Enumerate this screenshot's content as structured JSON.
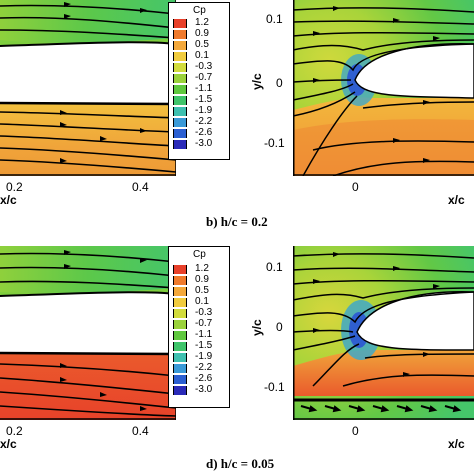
{
  "captions": {
    "b": "b) h/c = 0.2",
    "d": "d) h/c = 0.05"
  },
  "axes": {
    "xlabel": "x/c",
    "ylabel": "y/c",
    "left_x_ticks": [
      "0.2",
      "0.4"
    ],
    "right_x_ticks": [
      "0"
    ],
    "right_y_ticks": [
      "0.1",
      "0",
      "-0.1"
    ]
  },
  "legend": {
    "title": "Cp",
    "levels": [
      "1.2",
      "0.9",
      "0.5",
      "0.1",
      "-0.3",
      "-0.7",
      "-1.1",
      "-1.5",
      "-1.9",
      "-2.2",
      "-2.6",
      "-3.0"
    ],
    "colors": [
      "#e8402a",
      "#f07a2c",
      "#f4a83a",
      "#f1cc3e",
      "#d2dc3c",
      "#9ad23a",
      "#5fc83e",
      "#3ec46a",
      "#3ec0b0",
      "#3a9ad8",
      "#2b5fd2",
      "#2a2ab8"
    ]
  },
  "figure_colors": {
    "suction_green": "#4cc443",
    "pressure_orange": "#f0a13a",
    "pressure_red": "#e8522c",
    "stagnation_blue": "#2f5fd0"
  }
}
